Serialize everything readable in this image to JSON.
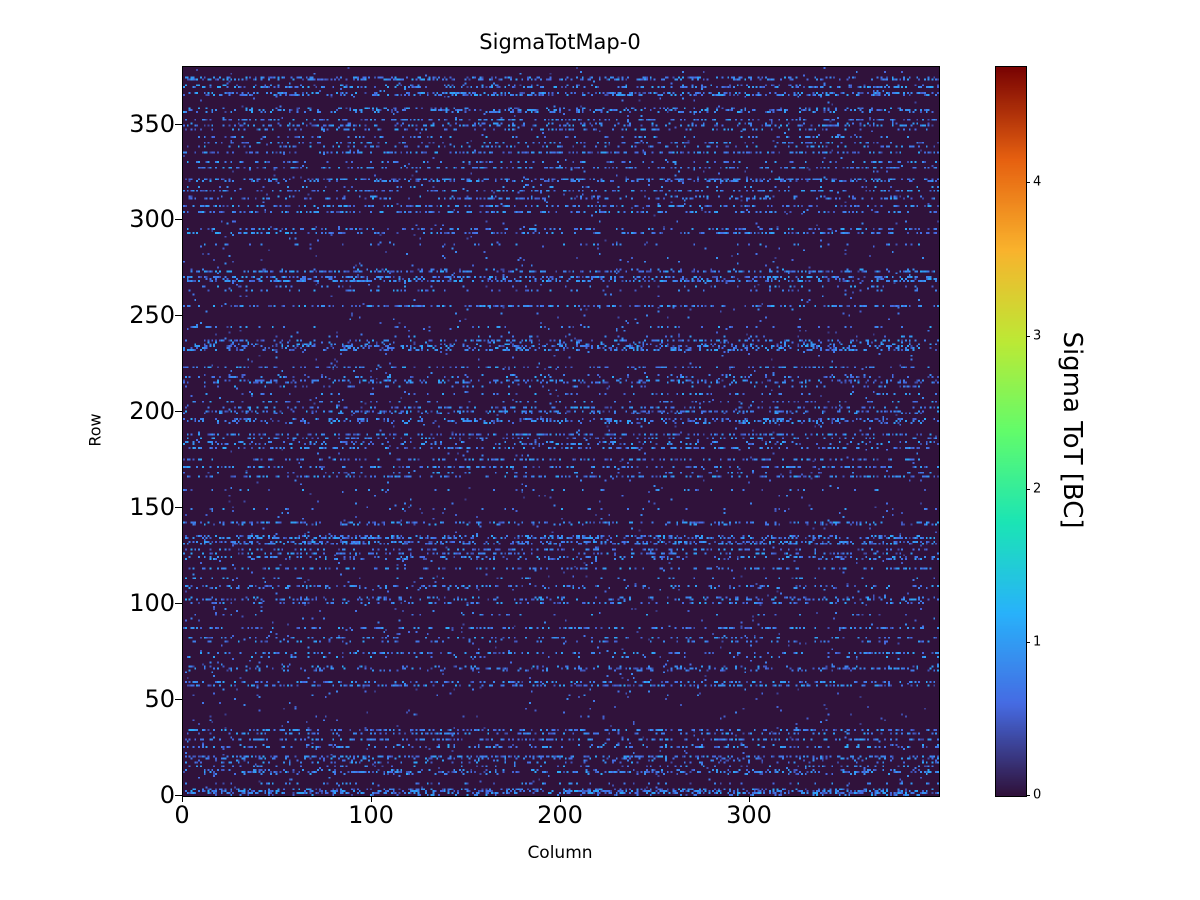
{
  "chart_data": {
    "type": "heatmap",
    "title": "SigmaTotMap-0",
    "xlabel": "Column",
    "ylabel": "Row",
    "colorbar_label": "Sigma ToT [BC]",
    "x_range": [
      0,
      400
    ],
    "y_range": [
      0,
      380
    ],
    "x_ticks": [
      0,
      100,
      200,
      300
    ],
    "y_ticks": [
      0,
      50,
      100,
      150,
      200,
      250,
      300,
      350
    ],
    "colorbar_ticks": [
      0,
      1,
      2,
      3,
      4
    ],
    "vmin": 0,
    "vmax": 4.76,
    "colormap": "turbo",
    "grid": false,
    "background_value": 0,
    "noise_model": {
      "seed": 1337,
      "noisy_row_fraction": 0.28,
      "noisy_pixel_fraction_min": 0.08,
      "noisy_pixel_fraction_max": 0.45,
      "noisy_value_min": 0.35,
      "noisy_value_max": 1.15,
      "sparse_pixel_fraction": 0.012,
      "sparse_value_min": 0.25,
      "sparse_value_max": 0.9
    },
    "description": "Per-pixel sigma ToT map, 400 columns x 380 rows; values mostly ~0 (dark) with sparse blue noise pixels (~0.4-1.1 BC) concentrated in dashed horizontal rows"
  }
}
